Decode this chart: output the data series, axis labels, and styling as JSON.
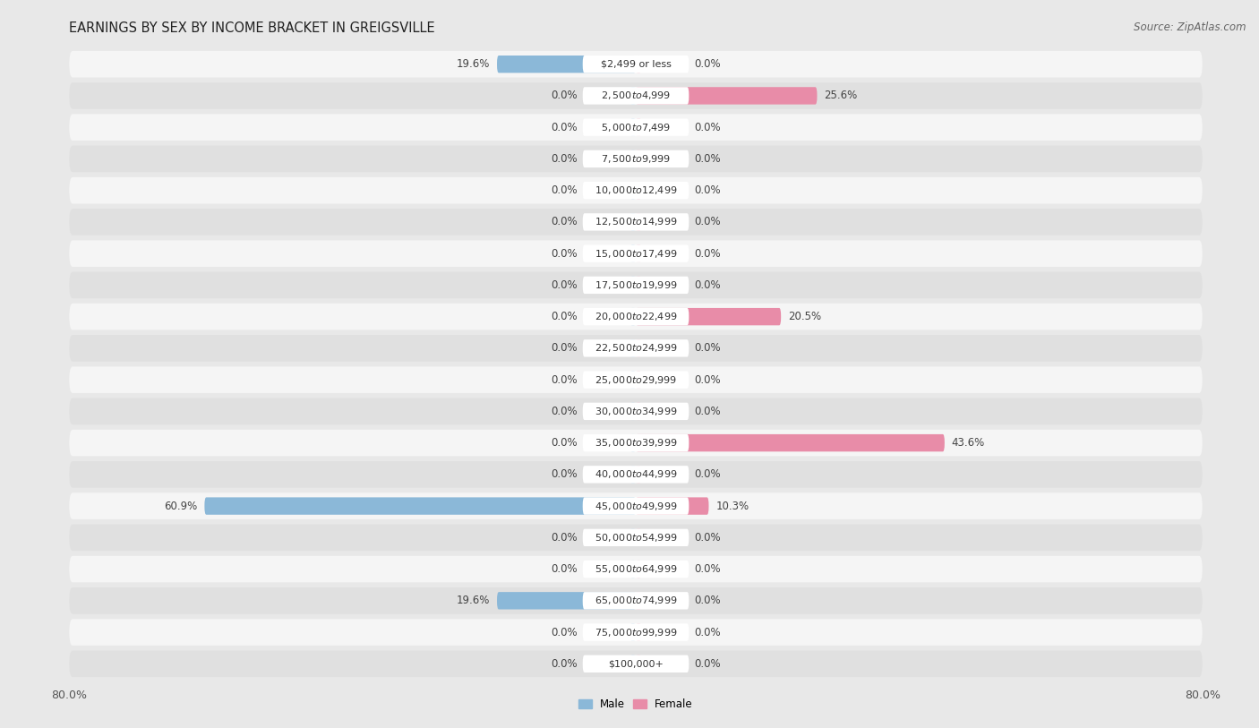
{
  "title": "EARNINGS BY SEX BY INCOME BRACKET IN GREIGSVILLE",
  "source": "Source: ZipAtlas.com",
  "categories": [
    "$2,499 or less",
    "$2,500 to $4,999",
    "$5,000 to $7,499",
    "$7,500 to $9,999",
    "$10,000 to $12,499",
    "$12,500 to $14,999",
    "$15,000 to $17,499",
    "$17,500 to $19,999",
    "$20,000 to $22,499",
    "$22,500 to $24,999",
    "$25,000 to $29,999",
    "$30,000 to $34,999",
    "$35,000 to $39,999",
    "$40,000 to $44,999",
    "$45,000 to $49,999",
    "$50,000 to $54,999",
    "$55,000 to $64,999",
    "$65,000 to $74,999",
    "$75,000 to $99,999",
    "$100,000+"
  ],
  "male": [
    19.6,
    0.0,
    0.0,
    0.0,
    0.0,
    0.0,
    0.0,
    0.0,
    0.0,
    0.0,
    0.0,
    0.0,
    0.0,
    0.0,
    60.9,
    0.0,
    0.0,
    19.6,
    0.0,
    0.0
  ],
  "female": [
    0.0,
    25.6,
    0.0,
    0.0,
    0.0,
    0.0,
    0.0,
    0.0,
    20.5,
    0.0,
    0.0,
    0.0,
    43.6,
    0.0,
    10.3,
    0.0,
    0.0,
    0.0,
    0.0,
    0.0
  ],
  "male_color": "#8bb8d8",
  "female_color": "#e88ca8",
  "male_color_light": "#b8d4e8",
  "female_color_light": "#f0b8c8",
  "bg_color": "#e8e8e8",
  "row_light": "#f5f5f5",
  "row_dark": "#e0e0e0",
  "xlim": 80.0,
  "bar_height": 0.55,
  "label_fontsize": 8.5,
  "cat_fontsize": 8.0,
  "title_fontsize": 10.5,
  "source_fontsize": 8.5,
  "tick_fontsize": 9.0
}
